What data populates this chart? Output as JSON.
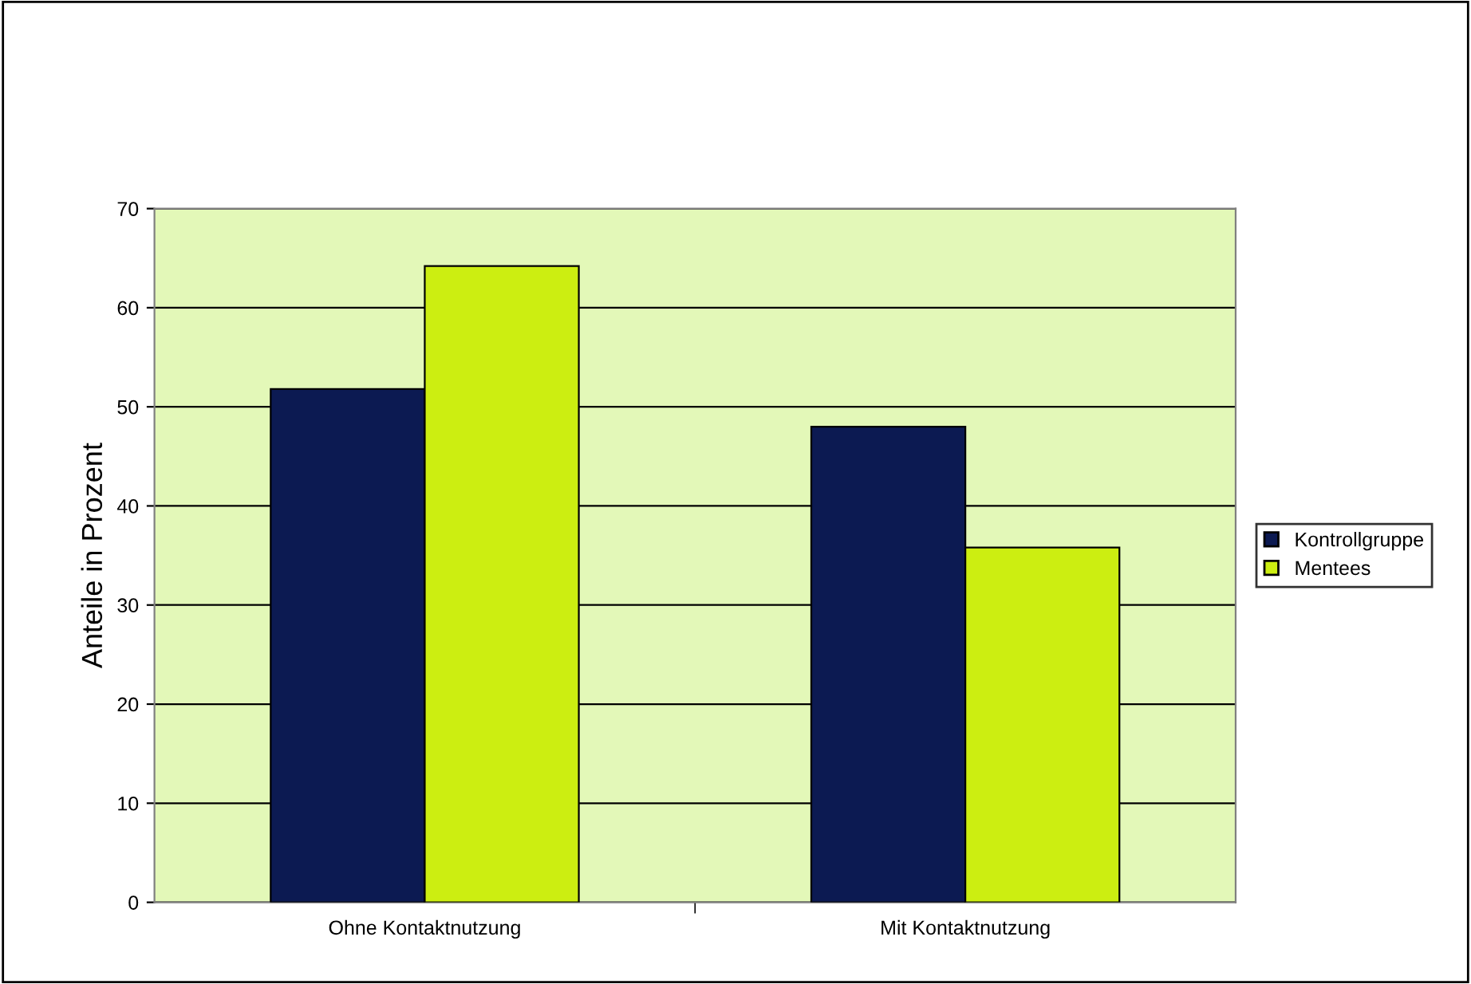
{
  "chart_data": {
    "type": "bar",
    "ylabel": "Anteile in Prozent",
    "categories": [
      "Ohne Kontaktnutzung",
      "Mit Kontaktnutzung"
    ],
    "series": [
      {
        "name": "Kontrollgruppe",
        "color": "#0c1a52",
        "values": [
          51.8,
          48.0
        ]
      },
      {
        "name": "Mentees",
        "color": "#ccee11",
        "values": [
          64.2,
          35.8
        ]
      }
    ],
    "ylim": [
      0,
      70
    ],
    "yticks": [
      0,
      10,
      20,
      30,
      40,
      50,
      60,
      70
    ],
    "grid": "y",
    "legend": "right"
  }
}
